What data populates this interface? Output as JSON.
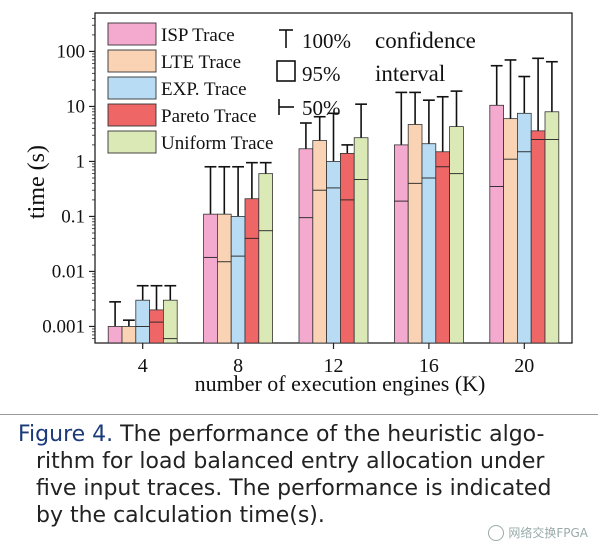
{
  "chart_data": {
    "type": "bar",
    "ylabel": "time (s)",
    "xlabel": "number of execution engines (K)",
    "y_scale": "log",
    "ylim": [
      0.0005,
      500
    ],
    "y_ticks": [
      {
        "value": 0.001,
        "label": "0.001"
      },
      {
        "value": 0.01,
        "label": "0.01"
      },
      {
        "value": 0.1,
        "label": "0.1"
      },
      {
        "value": 1,
        "label": "1"
      },
      {
        "value": 10,
        "label": "10"
      },
      {
        "value": 100,
        "label": "100"
      }
    ],
    "categories": [
      "4",
      "8",
      "12",
      "16",
      "20"
    ],
    "series": [
      {
        "name": "ISP Trace",
        "color": "#f4a9cf",
        "q25": [
          0.0005,
          0.0005,
          0.0005,
          0.0005,
          0.0005
        ],
        "median": [
          0.0005,
          0.018,
          0.095,
          0.19,
          0.35
        ],
        "q75": [
          0.001,
          0.11,
          1.7,
          2.0,
          10.5
        ],
        "max": [
          0.0028,
          0.8,
          5.0,
          18,
          55
        ]
      },
      {
        "name": "LTE Trace",
        "color": "#fad3b4",
        "q25": [
          0.0005,
          0.0005,
          0.0005,
          0.0005,
          0.0005
        ],
        "median": [
          0.0005,
          0.015,
          0.3,
          0.4,
          1.1
        ],
        "q75": [
          0.001,
          0.11,
          2.4,
          4.7,
          6.0
        ],
        "max": [
          0.0013,
          0.8,
          6.5,
          18,
          70
        ]
      },
      {
        "name": "EXP. Trace",
        "color": "#b8dcf4",
        "q25": [
          0.0005,
          0.0005,
          0.0005,
          0.0005,
          0.0005
        ],
        "median": [
          0.001,
          0.019,
          0.33,
          0.5,
          1.5
        ],
        "q75": [
          0.003,
          0.1,
          1.0,
          2.1,
          7.5
        ],
        "max": [
          0.0055,
          0.8,
          7.5,
          13,
          35
        ]
      },
      {
        "name": "Pareto Trace",
        "color": "#ee6666",
        "q25": [
          0.0005,
          0.0005,
          0.0005,
          0.0005,
          0.0005
        ],
        "median": [
          0.0012,
          0.04,
          0.2,
          0.8,
          2.5
        ],
        "q75": [
          0.002,
          0.21,
          1.4,
          1.5,
          3.6
        ],
        "max": [
          0.0055,
          0.95,
          2.0,
          15,
          75
        ]
      },
      {
        "name": "Uniform Trace",
        "color": "#dbe9b6",
        "q25": [
          0.0005,
          0.0005,
          0.0005,
          0.0005,
          0.0005
        ],
        "median": [
          0.0006,
          0.055,
          0.47,
          0.6,
          2.5
        ],
        "q75": [
          0.003,
          0.6,
          2.7,
          4.3,
          8.0
        ],
        "max": [
          0.0055,
          0.95,
          11,
          19,
          65
        ]
      }
    ],
    "whisker_legend": [
      {
        "symbol": "T",
        "label": "100%"
      },
      {
        "symbol": "box",
        "label": "95%"
      },
      {
        "symbol": "H",
        "label": "50%"
      }
    ],
    "whisker_legend_text": [
      "confidence",
      "interval"
    ]
  },
  "caption": {
    "label": "Figure 4.",
    "lines": [
      "The performance of the heuristic algo-",
      "rithm for load balanced entry allocation under",
      "five input traces. The performance is indicated",
      "by the calculation time(s)."
    ]
  },
  "watermark": {
    "text": "网络交换FPGA",
    "icon": "wechat-icon"
  }
}
